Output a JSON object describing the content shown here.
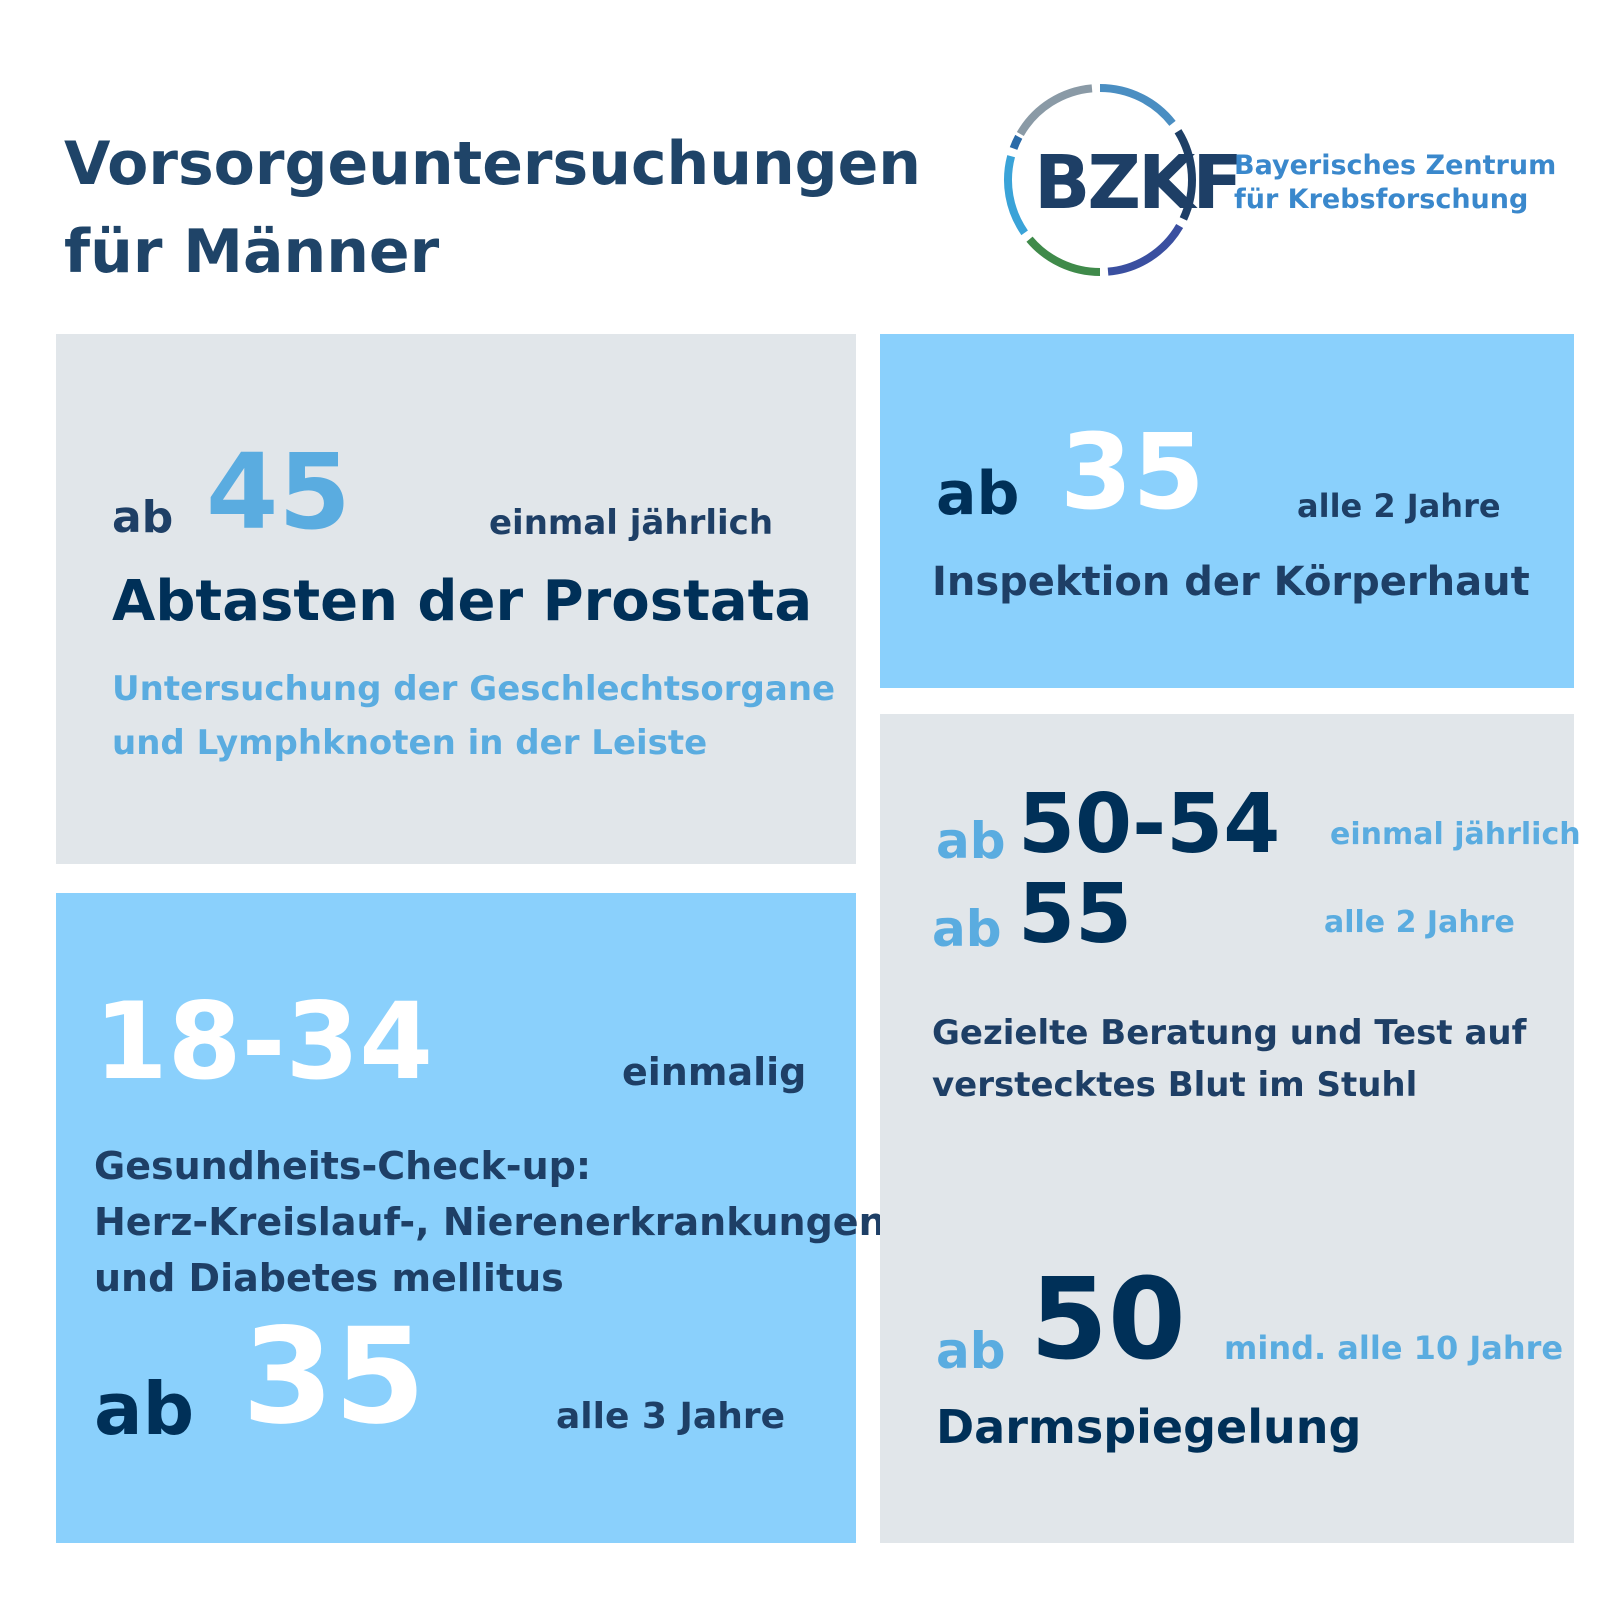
{
  "title": {
    "line1": "Vorsorgeuntersuchungen",
    "line2": "für Männer"
  },
  "logo": {
    "abbr": "BZKF",
    "name_line1": "Bayerisches Zentrum",
    "name_line2": "für Krebsforschung",
    "ring_colors": [
      "#8a9aa6",
      "#4a8ec2",
      "#1e3f66",
      "#3a4fa0",
      "#3f8a4a",
      "#3aa3d8",
      "#2a6aa8"
    ]
  },
  "cards": {
    "prostata": {
      "prefix": "ab",
      "age": "45",
      "frequency": "einmal jährlich",
      "heading": "Abtasten der Prostata",
      "detail_line1": "Untersuchung der Geschlechtsorgane",
      "detail_line2": "und Lymphknoten in der Leiste"
    },
    "haut": {
      "prefix": "ab",
      "age": "35",
      "frequency": "alle 2 Jahre",
      "heading": "Inspektion der Körperhaut"
    },
    "checkup": {
      "age_range": "18-34",
      "frequency_first": "einmalig",
      "heading_line1": "Gesundheits-Check-up:",
      "heading_line2": "Herz-Kreislauf-, Nierenerkrankungen",
      "heading_line3": "und Diabetes mellitus",
      "prefix": "ab",
      "age": "35",
      "frequency": "alle 3 Jahre"
    },
    "darm": {
      "row1": {
        "prefix": "ab",
        "age": "50-54",
        "frequency": "einmal jährlich"
      },
      "row2": {
        "prefix": "ab",
        "age": "55",
        "frequency": "alle 2 Jahre"
      },
      "stuhl_line1": "Gezielte Beratung und Test auf",
      "stuhl_line2": "verstecktes Blut im Stuhl",
      "row3": {
        "prefix": "ab",
        "age": "50",
        "frequency": "mind. alle 10 Jahre"
      },
      "heading": "Darmspiegelung"
    }
  }
}
